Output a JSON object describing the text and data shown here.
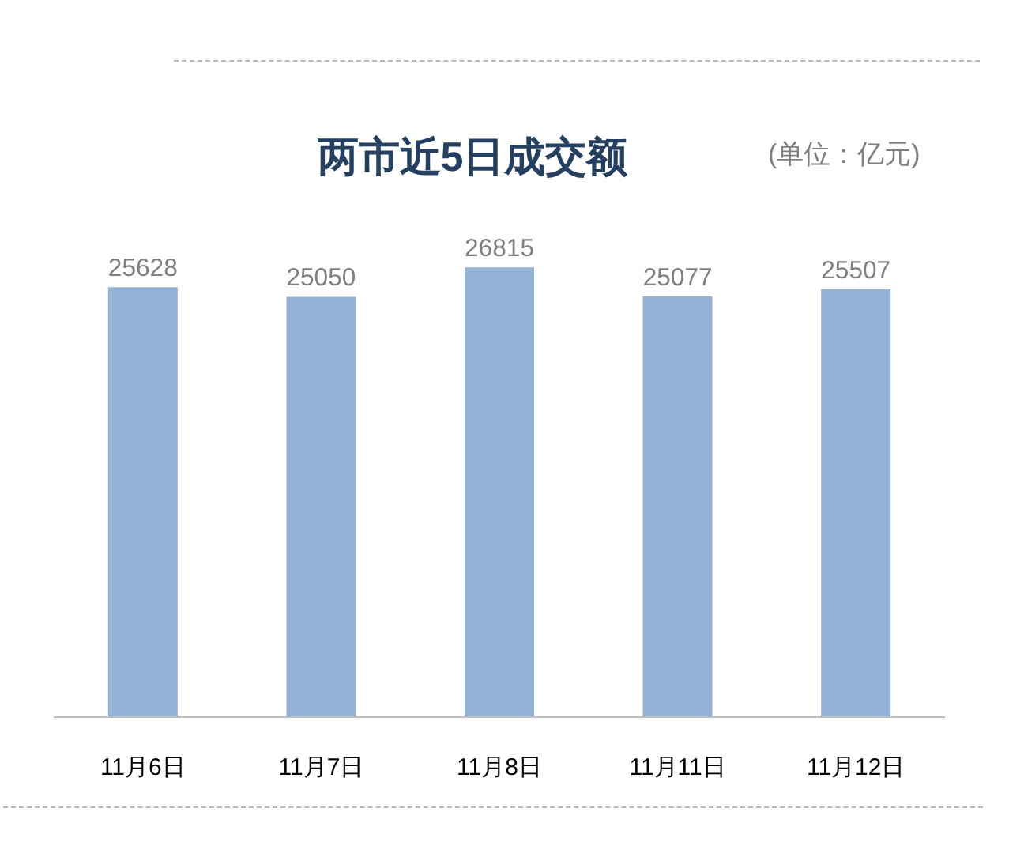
{
  "chart_data": {
    "type": "bar",
    "title": "两市近5日成交额",
    "annotations": [
      "(单位：亿元)"
    ],
    "categories": [
      "11月6日",
      "11月7日",
      "11月8日",
      "11月11日",
      "11月12日"
    ],
    "values": [
      25628,
      25050,
      26815,
      25077,
      25507
    ],
    "color": "#95b3d7",
    "data_labels": true
  }
}
